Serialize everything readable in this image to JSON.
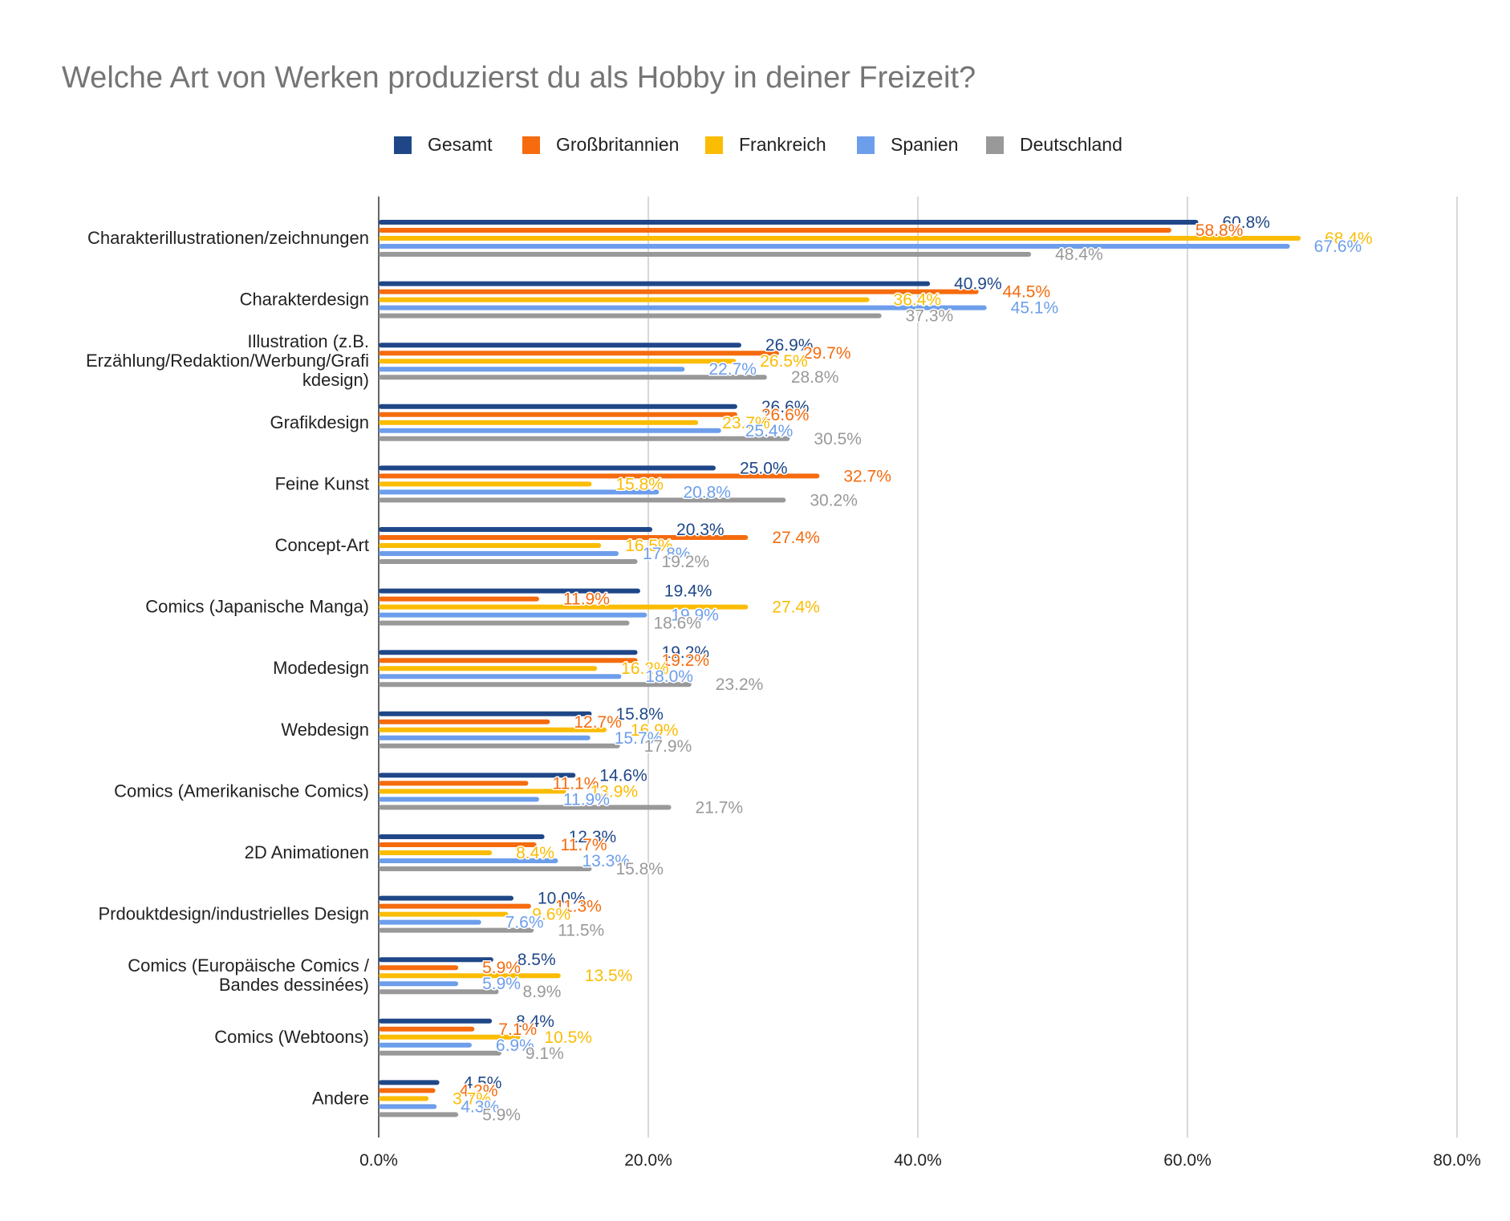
{
  "chart_data": {
    "type": "bar",
    "orientation": "horizontal",
    "title": "Welche Art von Werken produzierst du als Hobby in deiner Freizeit?",
    "xlim": [
      0,
      80
    ],
    "x_ticks": [
      "0.0%",
      "20.0%",
      "40.0%",
      "60.0%",
      "80.0%"
    ],
    "grid": true,
    "legend_position": "top",
    "categories": [
      [
        "Charakterillustrationen/zeichnungen"
      ],
      [
        "Charakterdesign"
      ],
      [
        "Illustration (z.B.",
        "Erzählung/Redaktion/Werbung/Grafi",
        "kdesign)"
      ],
      [
        "Grafikdesign"
      ],
      [
        "Feine Kunst"
      ],
      [
        "Concept-Art"
      ],
      [
        "Comics (Japanische Manga)"
      ],
      [
        "Modedesign"
      ],
      [
        "Webdesign"
      ],
      [
        "Comics (Amerikanische Comics)"
      ],
      [
        "2D Animationen"
      ],
      [
        "Prdouktdesign/industrielles Design"
      ],
      [
        "Comics (Europäische Comics /",
        "Bandes dessinées)"
      ],
      [
        "Comics (Webtoons)"
      ],
      [
        "Andere"
      ]
    ],
    "series": [
      {
        "name": "Gesamt",
        "color": "#1f4788",
        "values": [
          60.8,
          40.9,
          26.9,
          26.6,
          25.0,
          20.3,
          19.4,
          19.2,
          15.8,
          14.6,
          12.3,
          10.0,
          8.5,
          8.4,
          4.5
        ]
      },
      {
        "name": "Großbritannien",
        "color": "#f56b0e",
        "values": [
          58.8,
          44.5,
          29.7,
          26.6,
          32.7,
          27.4,
          11.9,
          19.2,
          12.7,
          11.1,
          11.7,
          11.3,
          5.9,
          7.1,
          4.2
        ]
      },
      {
        "name": "Frankreich",
        "color": "#fbbc04",
        "values": [
          68.4,
          36.4,
          26.5,
          23.7,
          15.8,
          16.5,
          27.4,
          16.2,
          16.9,
          13.9,
          8.4,
          9.6,
          13.5,
          10.5,
          3.7
        ]
      },
      {
        "name": "Spanien",
        "color": "#6d9eeb",
        "values": [
          67.6,
          45.1,
          22.7,
          25.4,
          20.8,
          17.8,
          19.9,
          18.0,
          15.7,
          11.9,
          13.3,
          7.6,
          5.9,
          6.9,
          4.3
        ]
      },
      {
        "name": "Deutschland",
        "color": "#999999",
        "values": [
          48.4,
          37.3,
          28.8,
          30.5,
          30.2,
          19.2,
          18.6,
          23.2,
          17.9,
          21.7,
          15.8,
          11.5,
          8.9,
          9.1,
          5.9
        ]
      }
    ]
  }
}
